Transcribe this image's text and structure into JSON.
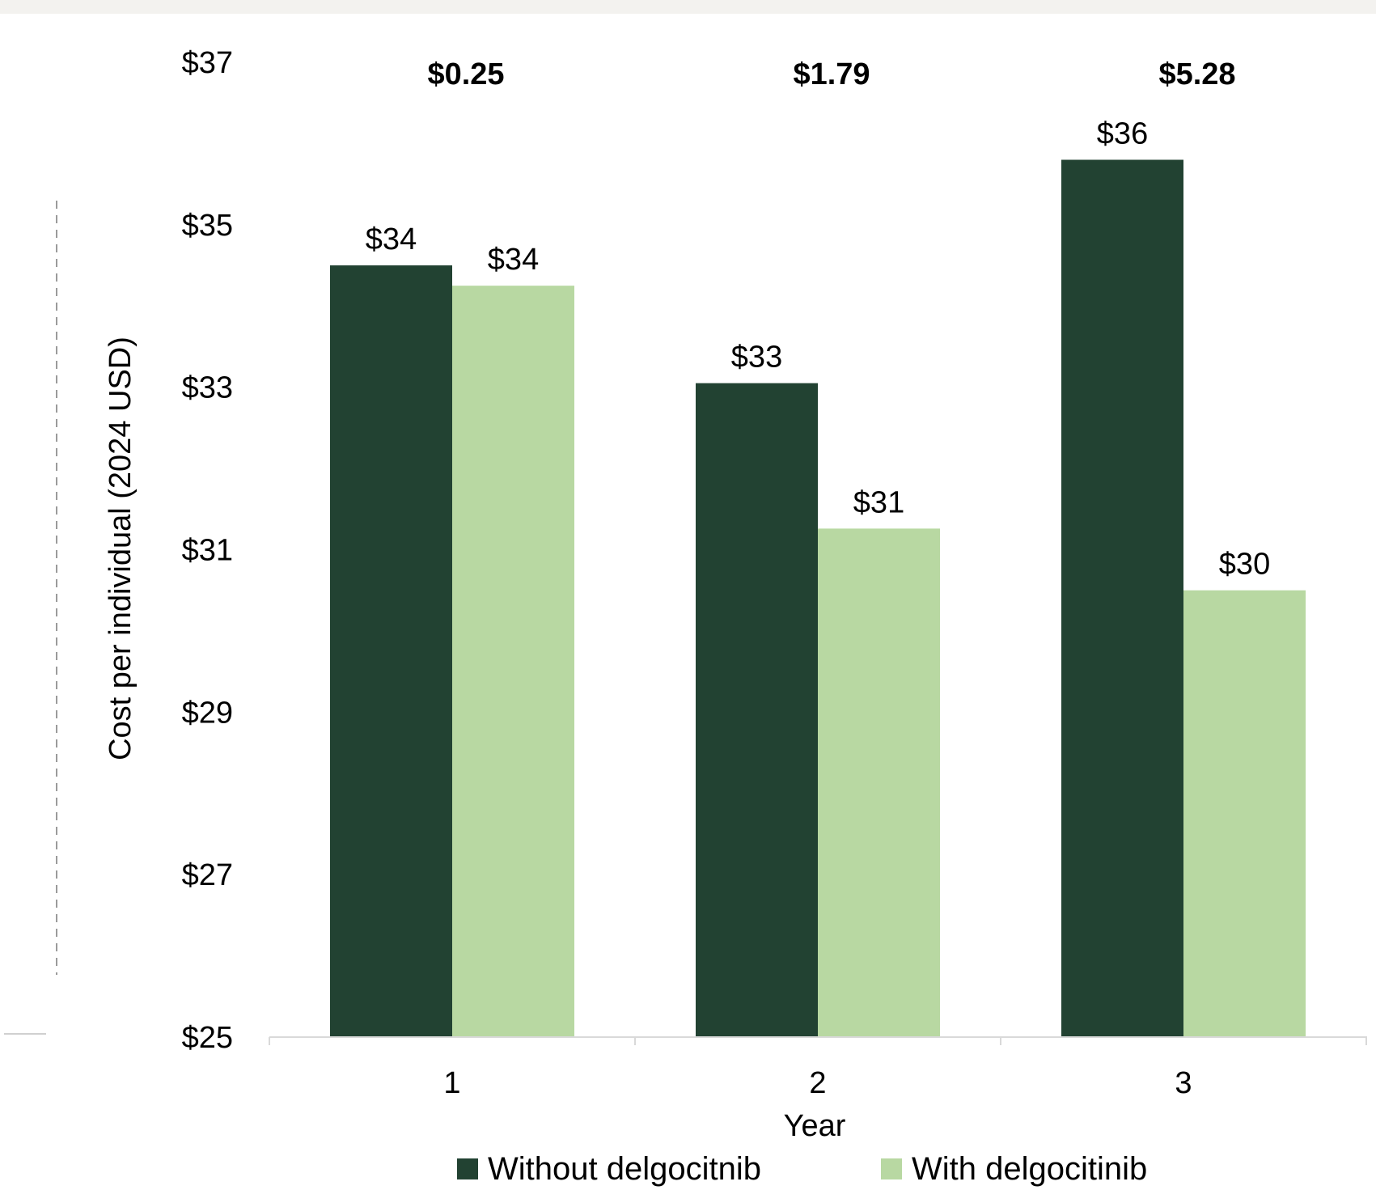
{
  "chart_data": {
    "type": "bar",
    "categories": [
      "1",
      "2",
      "3"
    ],
    "series": [
      {
        "name": "Without delgocitnib",
        "values": [
          34.5,
          33.05,
          35.8
        ],
        "labels": [
          "$34",
          "$33",
          "$36"
        ]
      },
      {
        "name": "With delgocitinib",
        "values": [
          34.25,
          31.26,
          30.5
        ],
        "labels": [
          "$34",
          "$31",
          "$30"
        ]
      }
    ],
    "differences": [
      "$0.25",
      "$1.79",
      "$5.28"
    ],
    "xlabel": "Year",
    "ylabel": "Cost per individual (2024 USD)",
    "ylim": [
      25,
      37
    ],
    "yticks": [
      25,
      27,
      29,
      31,
      33,
      35,
      37
    ],
    "ytick_labels": [
      "$25",
      "$27",
      "$29",
      "$31",
      "$33",
      "$35",
      "$37"
    ],
    "grid": false,
    "legend_position": "bottom",
    "colors": [
      "#224232",
      "#b8d8a2"
    ]
  }
}
